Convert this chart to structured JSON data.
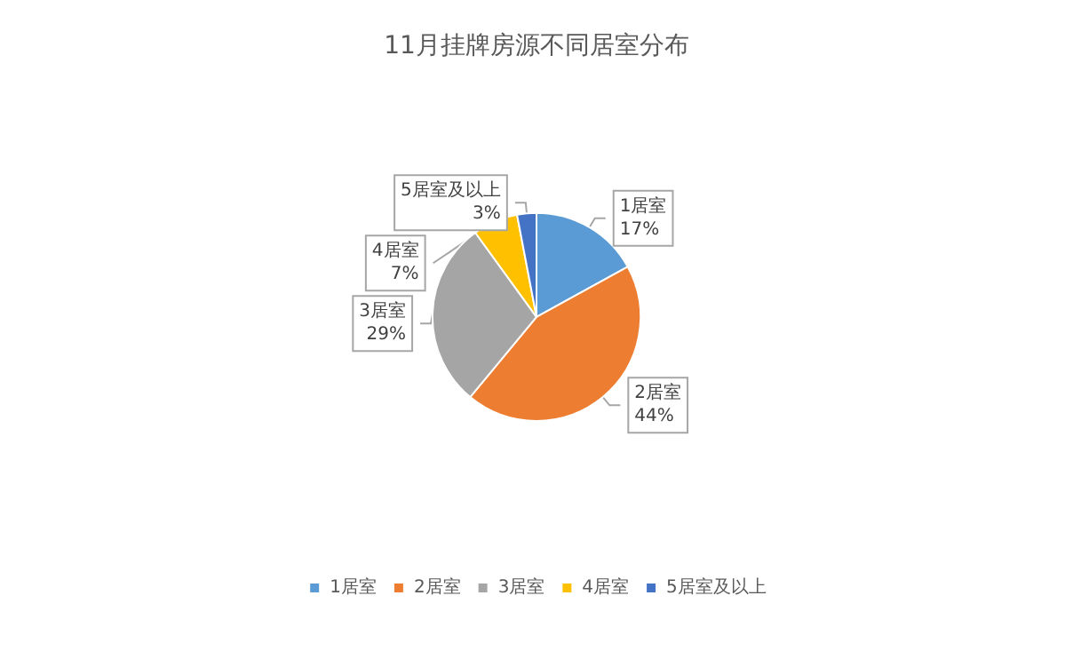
{
  "chart_data": {
    "type": "pie",
    "title": "11月挂牌房源不同居室分布",
    "categories": [
      "1居室",
      "2居室",
      "3居室",
      "4居室",
      "5居室及以上"
    ],
    "values": [
      17,
      44,
      29,
      7,
      3
    ],
    "value_labels": [
      "17%",
      "44%",
      "29%",
      "7%",
      "3%"
    ],
    "colors": [
      "#5b9bd5",
      "#ed7d31",
      "#a5a5a5",
      "#ffc000",
      "#4472c4"
    ],
    "legend": "bottom"
  }
}
